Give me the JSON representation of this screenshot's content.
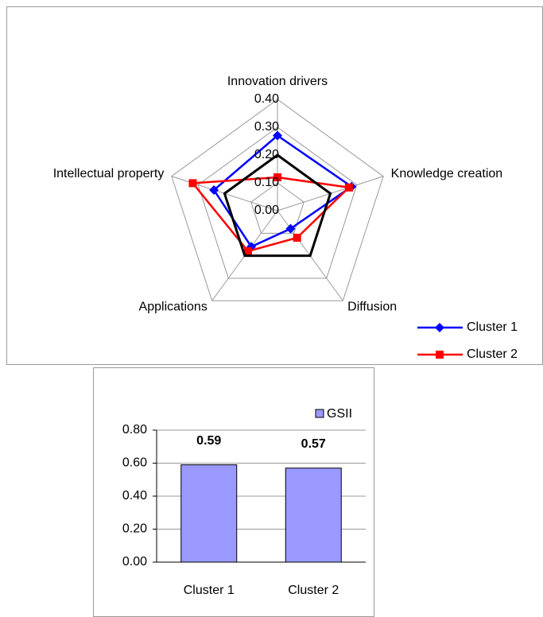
{
  "chart_data": [
    {
      "type": "radar",
      "categories": [
        "Innovation drivers",
        "Knowledge creation",
        "Diffusion",
        "Applications",
        "Intellectual property"
      ],
      "rlim": [
        0,
        0.4
      ],
      "rticks": [
        {
          "value": 0,
          "label": "0.00"
        },
        {
          "value": 0.1,
          "label": "0.10"
        },
        {
          "value": 0.2,
          "label": "0.20"
        },
        {
          "value": 0.3,
          "label": "0.30"
        },
        {
          "value": 0.4,
          "label": "0.40"
        }
      ],
      "series": [
        {
          "name": "Cluster 1",
          "color": "#0000ff",
          "marker": "diamond",
          "values": [
            0.27,
            0.28,
            0.08,
            0.16,
            0.24
          ]
        },
        {
          "name": "Cluster 2",
          "color": "#ff0000",
          "marker": "square",
          "values": [
            0.12,
            0.27,
            0.12,
            0.18,
            0.32
          ]
        },
        {
          "color": "#000000",
          "values": [
            0.2,
            0.2,
            0.2,
            0.2,
            0.2
          ]
        }
      ],
      "legend": "lower right"
    },
    {
      "type": "bar",
      "categories": [
        "Cluster 1",
        "Cluster 2"
      ],
      "series": [
        {
          "name": "GSII",
          "color": "#9999ff",
          "values": [
            0.59,
            0.57
          ],
          "value_labels": [
            "0.59",
            "0.57"
          ]
        }
      ],
      "ylim": [
        0,
        0.8
      ],
      "yticks": [
        {
          "value": 0,
          "label": "0.00"
        },
        {
          "value": 0.2,
          "label": "0.20"
        },
        {
          "value": 0.4,
          "label": "0.40"
        },
        {
          "value": 0.6,
          "label": "0.60"
        },
        {
          "value": 0.8,
          "label": "0.80"
        }
      ],
      "grid": true,
      "legend": "upper right"
    }
  ]
}
